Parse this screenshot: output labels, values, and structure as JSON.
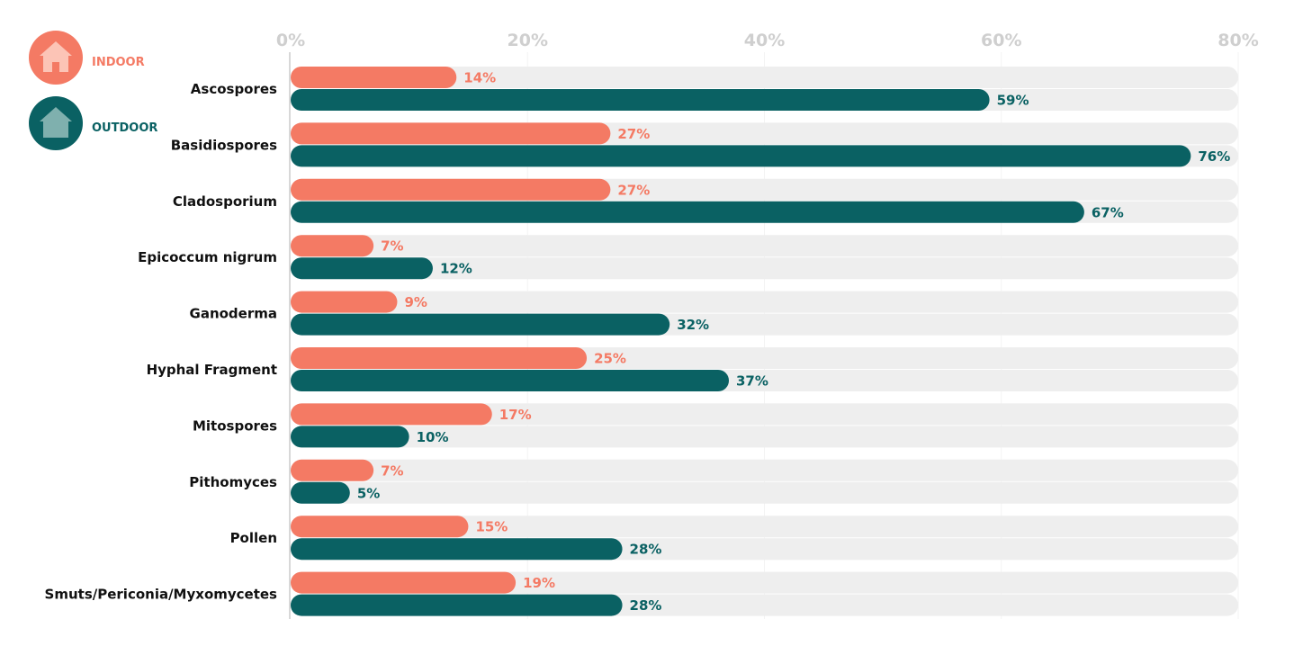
{
  "chart_data": {
    "type": "bar",
    "orientation": "horizontal",
    "categories": [
      "Ascospores",
      "Basidiospores",
      "Cladosporium",
      "Epicoccum nigrum",
      "Ganoderma",
      "Hyphal Fragment",
      "Mitospores",
      "Pithomyces",
      "Pollen",
      "Smuts/Periconia/Myxomycetes"
    ],
    "series": [
      {
        "name": "INDOOR",
        "color": "#f47a64",
        "icon": "house-icon",
        "values": [
          14,
          27,
          27,
          7,
          9,
          25,
          17,
          7,
          15,
          19
        ]
      },
      {
        "name": "OUTDOOR",
        "color": "#0a6163",
        "icon": "house-icon",
        "values": [
          59,
          76,
          67,
          12,
          32,
          37,
          10,
          5,
          28,
          28
        ]
      }
    ],
    "value_labels": {
      "INDOOR": [
        "14%",
        "27%",
        "27%",
        "7%",
        "9%",
        "25%",
        "17%",
        "7%",
        "15%",
        "19%"
      ],
      "OUTDOOR": [
        "59%",
        "76%",
        "67%",
        "12%",
        "32%",
        "37%",
        "10%",
        "5%",
        "28%",
        "28%"
      ]
    },
    "xticks": [
      "0%",
      "20%",
      "40%",
      "60%",
      "80%"
    ],
    "xlim": [
      0,
      80
    ],
    "title": "",
    "xlabel": "",
    "ylabel": "",
    "grid": true,
    "legend_position": "top-left",
    "colors": {
      "indoor": "#f47a64",
      "outdoor": "#0a6163",
      "track": "#eeeeee",
      "tick": "#cfcfcf",
      "indoor_icon_fill": "#fcc4b6",
      "outdoor_icon_fill": "#7fb0ae"
    }
  }
}
